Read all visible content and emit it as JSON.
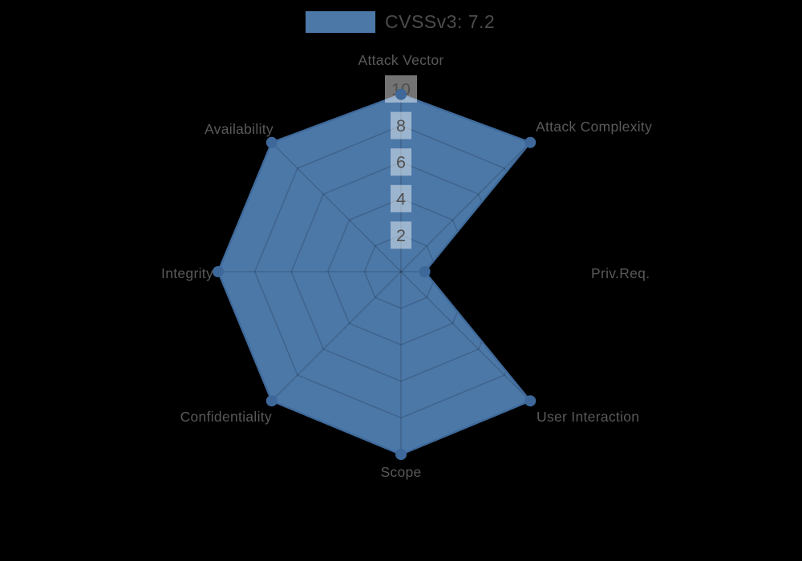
{
  "legend": {
    "label": "CVSSv3: 7.2",
    "swatch_color": "#4c78a8"
  },
  "chart_data": {
    "type": "radar",
    "title": "CVSSv3: 7.2",
    "categories": [
      "Attack Vector",
      "Attack Complexity",
      "Priv.Req.",
      "User Interaction",
      "Scope",
      "Confidentiality",
      "Integrity",
      "Availability"
    ],
    "series": [
      {
        "name": "CVSSv3: 7.2",
        "values": [
          9.7,
          10,
          1.3,
          10,
          10,
          10,
          10,
          10
        ]
      }
    ],
    "radial_ticks": [
      2,
      4,
      6,
      8,
      10
    ],
    "rmax": 10,
    "grid": true,
    "legend_position": "top",
    "colors": {
      "background": "#000000",
      "fill": "#4c78a8",
      "edge": "#3f6a9b",
      "marker": "#3d6899",
      "grid_line": "rgba(0,0,0,0.16)",
      "tick_box": "rgba(255,255,255,0.45)",
      "tick_text": "#4f4f4f",
      "label_text": "#595959"
    }
  }
}
